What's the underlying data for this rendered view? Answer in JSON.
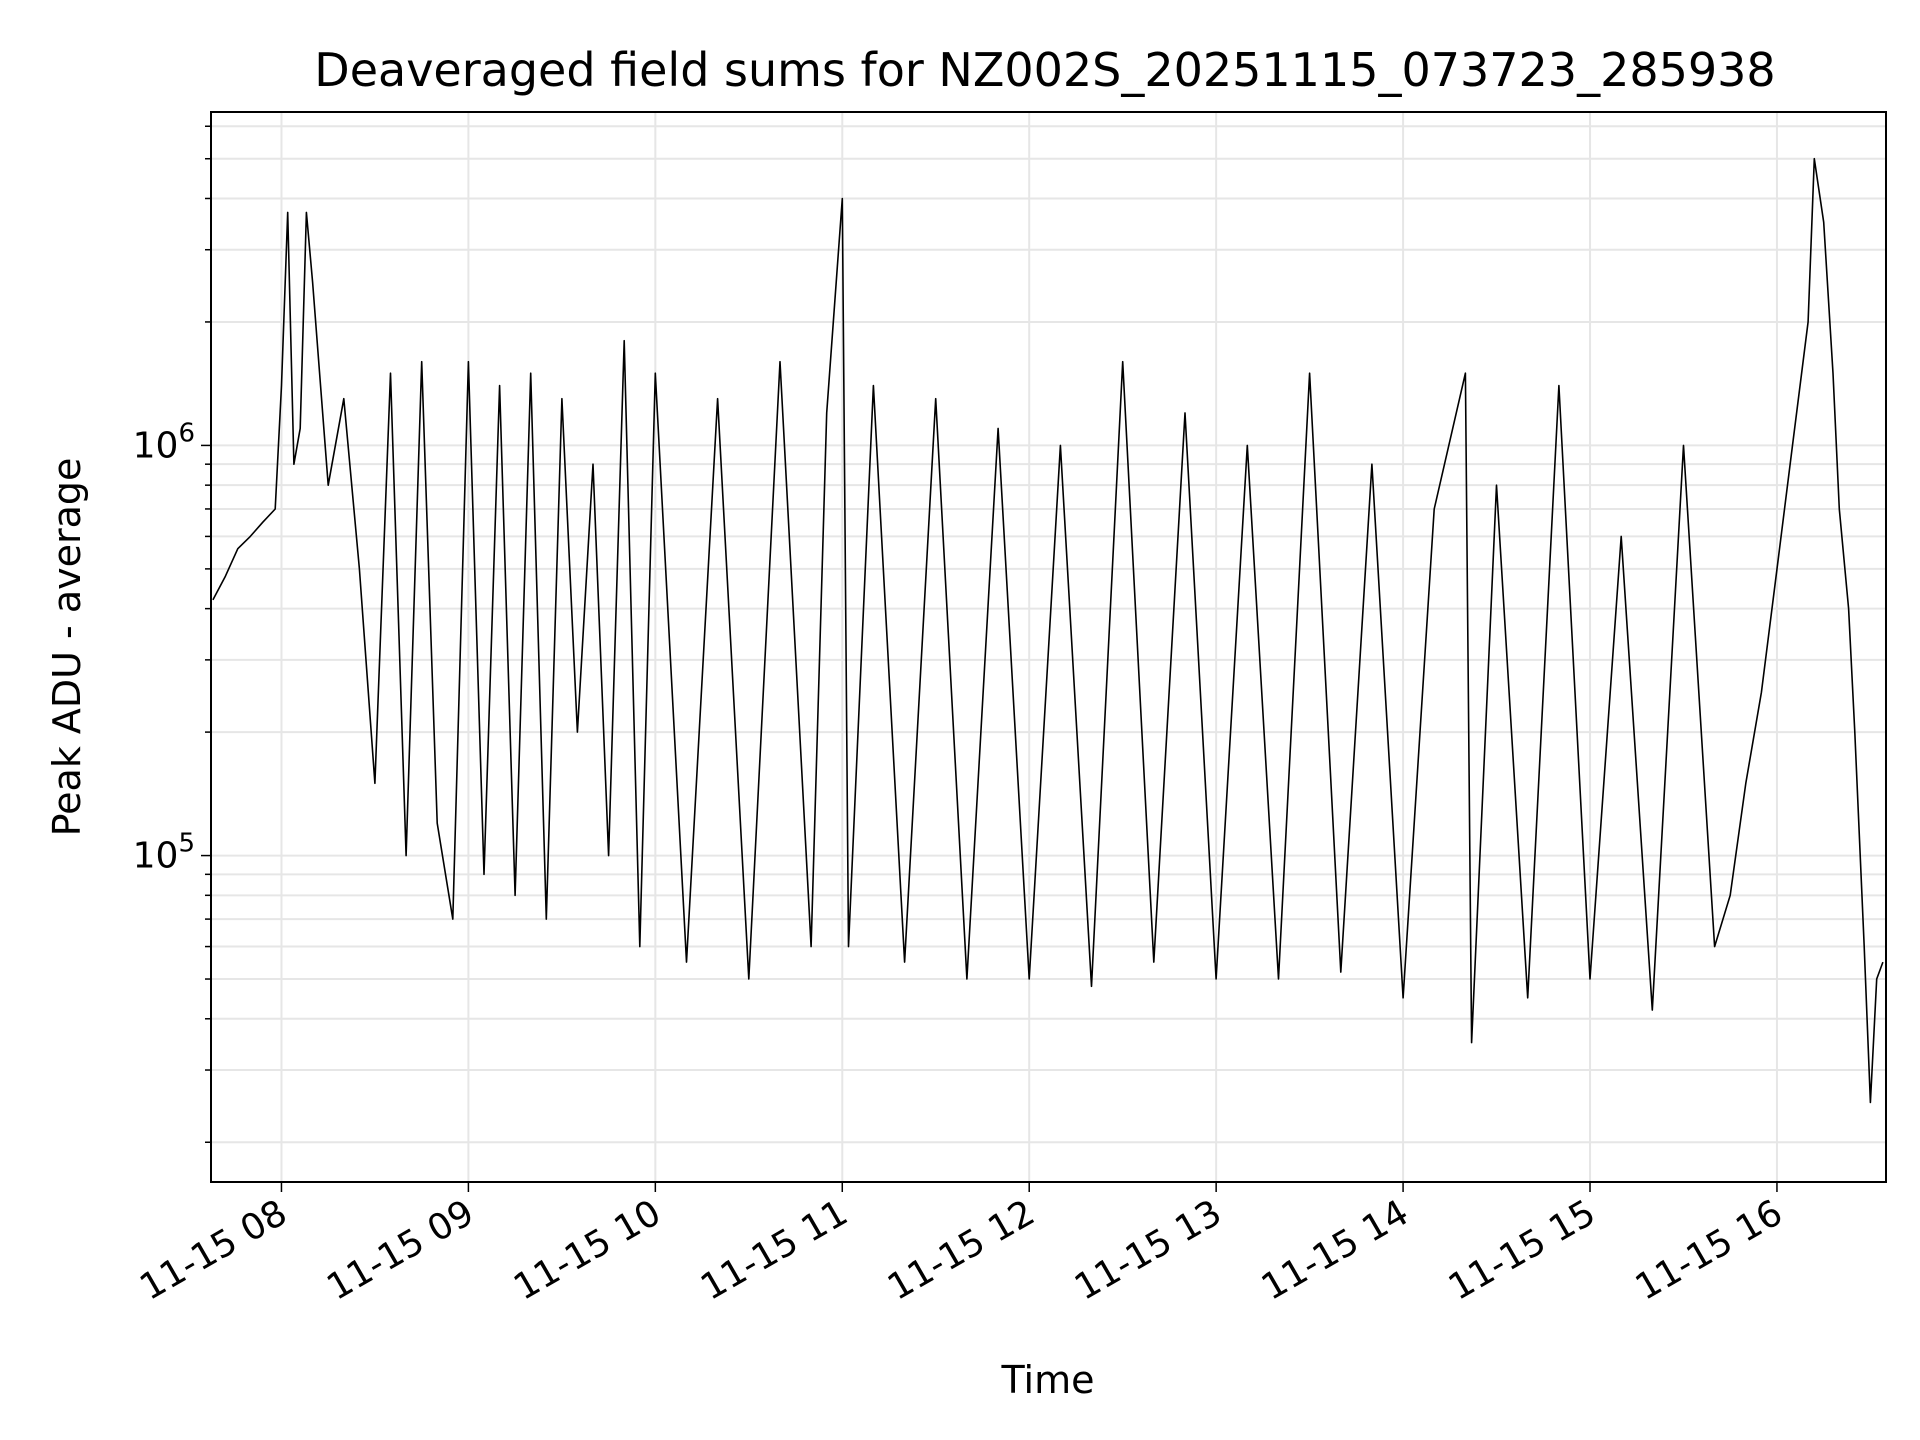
{
  "chart_data": {
    "type": "line",
    "title": "Deaveraged field sums for NZ002S_20251115_073723_285938",
    "xlabel": "Time",
    "ylabel": "Peak ADU - average",
    "yscale": "log",
    "ylim": [
      16000,
      6500000
    ],
    "xlim": [
      "2025-11-15 07:37:23",
      "2025-11-15 16:35:00"
    ],
    "grid": true,
    "line_color": "#000000",
    "grid_color": "#e6e6e6",
    "x_ticks": [
      "11-15 08",
      "11-15 09",
      "11-15 10",
      "11-15 11",
      "11-15 12",
      "11-15 13",
      "11-15 14",
      "11-15 15",
      "11-15 16"
    ],
    "y_ticks": [
      {
        "base": "10",
        "exp": "5"
      },
      {
        "base": "10",
        "exp": "6"
      }
    ],
    "series": [
      {
        "points": [
          [
            "07:38",
            420000
          ],
          [
            "07:42",
            480000
          ],
          [
            "07:46",
            560000
          ],
          [
            "07:50",
            600000
          ],
          [
            "07:54",
            650000
          ],
          [
            "07:58",
            700000
          ],
          [
            "08:00",
            1400000
          ],
          [
            "08:02",
            3700000
          ],
          [
            "08:04",
            900000
          ],
          [
            "08:06",
            1100000
          ],
          [
            "08:08",
            3700000
          ],
          [
            "08:10",
            2500000
          ],
          [
            "08:15",
            800000
          ],
          [
            "08:20",
            1300000
          ],
          [
            "08:25",
            500000
          ],
          [
            "08:30",
            150000
          ],
          [
            "08:35",
            1500000
          ],
          [
            "08:40",
            100000
          ],
          [
            "08:45",
            1600000
          ],
          [
            "08:50",
            120000
          ],
          [
            "08:55",
            70000
          ],
          [
            "09:00",
            1600000
          ],
          [
            "09:05",
            90000
          ],
          [
            "09:10",
            1400000
          ],
          [
            "09:15",
            80000
          ],
          [
            "09:20",
            1500000
          ],
          [
            "09:25",
            70000
          ],
          [
            "09:30",
            1300000
          ],
          [
            "09:35",
            200000
          ],
          [
            "09:40",
            900000
          ],
          [
            "09:45",
            100000
          ],
          [
            "09:50",
            1800000
          ],
          [
            "09:55",
            60000
          ],
          [
            "10:00",
            1500000
          ],
          [
            "10:10",
            55000
          ],
          [
            "10:20",
            1300000
          ],
          [
            "10:30",
            50000
          ],
          [
            "10:40",
            1600000
          ],
          [
            "10:50",
            60000
          ],
          [
            "10:55",
            1200000
          ],
          [
            "11:00",
            4000000
          ],
          [
            "11:02",
            60000
          ],
          [
            "11:10",
            1400000
          ],
          [
            "11:20",
            55000
          ],
          [
            "11:30",
            1300000
          ],
          [
            "11:40",
            50000
          ],
          [
            "11:50",
            1100000
          ],
          [
            "12:00",
            50000
          ],
          [
            "12:10",
            1000000
          ],
          [
            "12:20",
            48000
          ],
          [
            "12:30",
            1600000
          ],
          [
            "12:40",
            55000
          ],
          [
            "12:50",
            1200000
          ],
          [
            "13:00",
            50000
          ],
          [
            "13:10",
            1000000
          ],
          [
            "13:20",
            50000
          ],
          [
            "13:30",
            1500000
          ],
          [
            "13:40",
            52000
          ],
          [
            "13:50",
            900000
          ],
          [
            "14:00",
            45000
          ],
          [
            "14:10",
            700000
          ],
          [
            "14:20",
            1500000
          ],
          [
            "14:22",
            35000
          ],
          [
            "14:30",
            800000
          ],
          [
            "14:40",
            45000
          ],
          [
            "14:50",
            1400000
          ],
          [
            "15:00",
            50000
          ],
          [
            "15:10",
            600000
          ],
          [
            "15:20",
            42000
          ],
          [
            "15:30",
            1000000
          ],
          [
            "15:40",
            60000
          ],
          [
            "15:45",
            80000
          ],
          [
            "15:50",
            150000
          ],
          [
            "15:55",
            250000
          ],
          [
            "16:00",
            500000
          ],
          [
            "16:05",
            1000000
          ],
          [
            "16:10",
            2000000
          ],
          [
            "16:12",
            5000000
          ],
          [
            "16:15",
            3500000
          ],
          [
            "16:18",
            1500000
          ],
          [
            "16:20",
            700000
          ],
          [
            "16:23",
            400000
          ],
          [
            "16:25",
            200000
          ],
          [
            "16:28",
            60000
          ],
          [
            "16:30",
            25000
          ],
          [
            "16:32",
            50000
          ],
          [
            "16:34",
            55000
          ]
        ]
      }
    ]
  }
}
